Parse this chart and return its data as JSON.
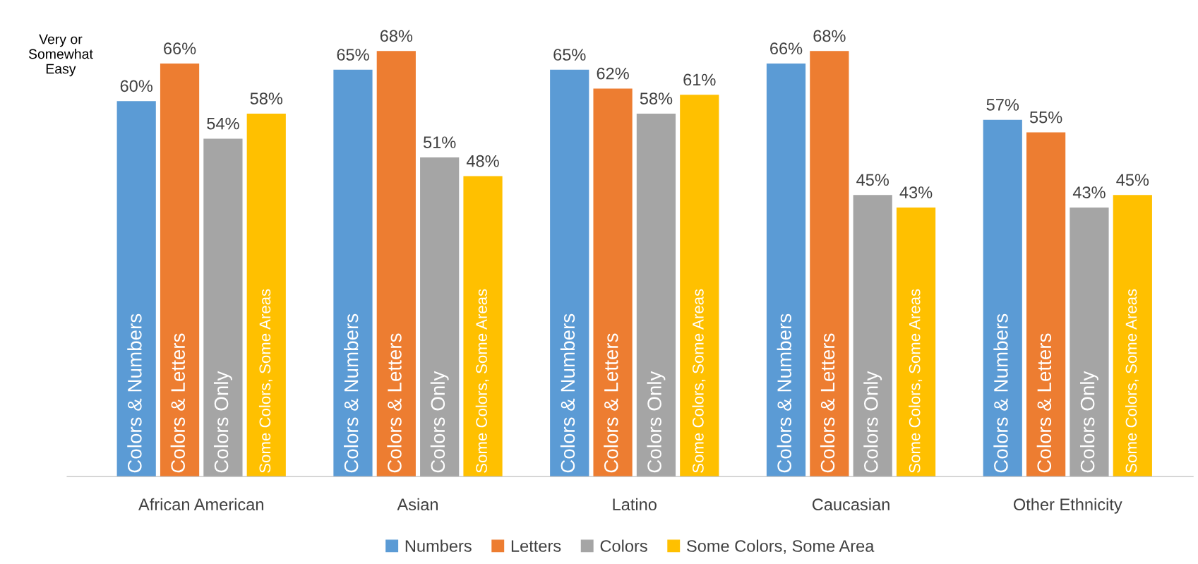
{
  "chart_data": {
    "type": "bar",
    "categories": [
      "African American",
      "Asian",
      "Latino",
      "Caucasian",
      "Other Ethnicity"
    ],
    "series": [
      {
        "name": "Numbers",
        "color": "#5b9bd5",
        "values": [
          60,
          65,
          65,
          66,
          57
        ],
        "value_labels": [
          "60%",
          "65%",
          "65%",
          "66%",
          "57%"
        ]
      },
      {
        "name": "Letters",
        "color": "#ed7d31",
        "values": [
          66,
          68,
          62,
          68,
          55
        ],
        "value_labels": [
          "66%",
          "68%",
          "62%",
          "68%",
          "55%"
        ]
      },
      {
        "name": "Colors",
        "color": "#a5a5a5",
        "values": [
          54,
          51,
          58,
          45,
          43
        ],
        "value_labels": [
          "54%",
          "51%",
          "58%",
          "45%",
          "43%"
        ]
      },
      {
        "name": "Some Colors, Some Area",
        "color": "#ffc000",
        "values": [
          58,
          48,
          61,
          43,
          45
        ],
        "value_labels": [
          "58%",
          "48%",
          "61%",
          "43%",
          "45%"
        ]
      }
    ],
    "legend": "bottom",
    "grid": false,
    "annotations": [
      "Very or Somewhat Easy",
      "Colors & Numbers",
      "Colors & Letters",
      "Colors Only",
      "Some Colors, Some Areas",
      "Colors & Numbers",
      "Colors & Letters",
      "Colors Only",
      "Some Colors, Some Areas",
      "Colors & Numbers",
      "Colors & Letters",
      "Colors Only",
      "Some Colors, Some Areas",
      "Colors & Numbers",
      "Colors & Letters",
      "Colors Only",
      "Some Colors, Some Areas",
      "Colors & Numbers",
      "Colors & Letters",
      "Colors Only",
      "Some Colors, Some Areas"
    ]
  }
}
